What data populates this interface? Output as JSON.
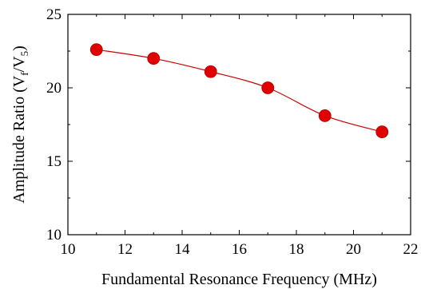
{
  "chart_data": {
    "type": "scatter",
    "title": "",
    "xlabel": "Fundamental Resonance Frequency (MHz)",
    "ylabel": {
      "prefix": "Amplitude Ratio (V",
      "sub1": "f",
      "mid": "/V",
      "sub2": "5",
      "suffix": ")"
    },
    "xlim": [
      10,
      22
    ],
    "ylim": [
      10,
      25
    ],
    "xticks": [
      "10",
      "12",
      "14",
      "16",
      "18",
      "20",
      "22"
    ],
    "yticks": [
      "10",
      "15",
      "20",
      "25"
    ],
    "grid": false,
    "series": [
      {
        "x": [
          11,
          13,
          15,
          17,
          19,
          21
        ],
        "y": [
          22.6,
          22.0,
          21.1,
          20.0,
          18.1,
          17.0
        ],
        "marker_color": "#e00000",
        "line_color": "#cc0000",
        "smooth_line": true
      }
    ]
  }
}
